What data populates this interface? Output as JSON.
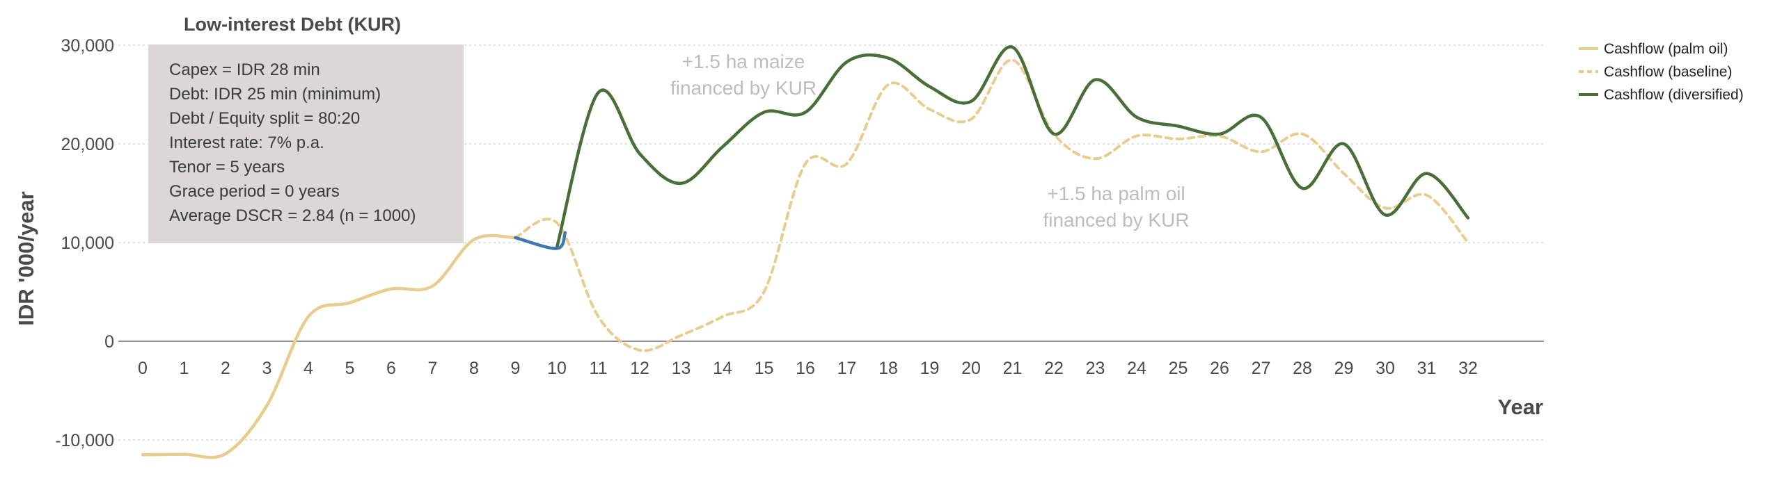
{
  "chart_data": {
    "type": "line",
    "title": "Low-interest Debt (KUR)",
    "xlabel": "Year",
    "ylabel": "IDR '000/year",
    "xlim": [
      0,
      32
    ],
    "ylim": [
      -12000,
      30000
    ],
    "x_ticks": [
      0,
      1,
      2,
      3,
      4,
      5,
      6,
      7,
      8,
      9,
      10,
      11,
      12,
      13,
      14,
      15,
      16,
      17,
      18,
      19,
      20,
      21,
      22,
      23,
      24,
      25,
      26,
      27,
      28,
      29,
      30,
      31,
      32
    ],
    "y_ticks": [
      -10000,
      0,
      10000,
      20000,
      30000
    ],
    "y_tick_labels": [
      "-10,000",
      "0",
      "10,000",
      "20,000",
      "30,000"
    ],
    "grid": "horizontal dashed",
    "legend_position": "top-right",
    "info_box": [
      "Capex = IDR 28 min",
      "Debt: IDR 25 min (minimum)",
      "Debt / Equity split = 80:20",
      "Interest rate: 7% p.a.",
      "Tenor = 5 years",
      "Grace period = 0 years",
      "Average DSCR = 2.84 (n = 1000)"
    ],
    "annotations": [
      {
        "lines": [
          "+1.5 ha maize",
          "financed by KUR"
        ],
        "x": 14,
        "y": 26500
      },
      {
        "lines": [
          "+1.5 ha palm oil",
          "financed by KUR"
        ],
        "x": 23,
        "y": 14000
      }
    ],
    "series": [
      {
        "name": "Cashflow (palm oil)",
        "color": "#e8cd90",
        "style": "solid",
        "x": [
          0,
          1,
          2,
          3,
          4,
          5,
          6,
          7,
          8,
          9
        ],
        "values": [
          -11500,
          -11450,
          -11400,
          -6500,
          2500,
          3900,
          5300,
          5600,
          10300,
          10500
        ]
      },
      {
        "name": "Cashflow (baseline)",
        "color": "#e8cd90",
        "style": "dashed",
        "x": [
          9,
          10,
          11,
          12,
          13,
          14,
          15,
          16,
          17,
          18,
          19,
          20,
          21,
          22,
          23,
          24,
          25,
          26,
          27,
          28,
          29,
          30,
          31,
          32
        ],
        "values": [
          10500,
          12000,
          2500,
          -900,
          600,
          2500,
          5000,
          18000,
          18000,
          26000,
          23500,
          22500,
          28500,
          21000,
          18500,
          20800,
          20500,
          20800,
          19200,
          21000,
          17000,
          13500,
          14800,
          10000
        ]
      },
      {
        "name": "Cashflow (diversified)",
        "color": "#4a6e39",
        "style": "solid",
        "x": [
          10,
          11,
          12,
          13,
          14,
          15,
          16,
          17,
          18,
          19,
          20,
          21,
          22,
          23,
          24,
          25,
          26,
          27,
          28,
          29,
          30,
          31,
          32
        ],
        "values": [
          9500,
          25200,
          19000,
          16000,
          19700,
          23200,
          23200,
          28300,
          28700,
          25800,
          24300,
          29800,
          21000,
          26500,
          22700,
          21800,
          21000,
          22700,
          15500,
          20000,
          12800,
          17000,
          12500
        ]
      }
    ],
    "transition_segment": {
      "color": "#3f78b0",
      "x": [
        9,
        10,
        10.2
      ],
      "values": [
        10500,
        9400,
        11000
      ]
    }
  }
}
